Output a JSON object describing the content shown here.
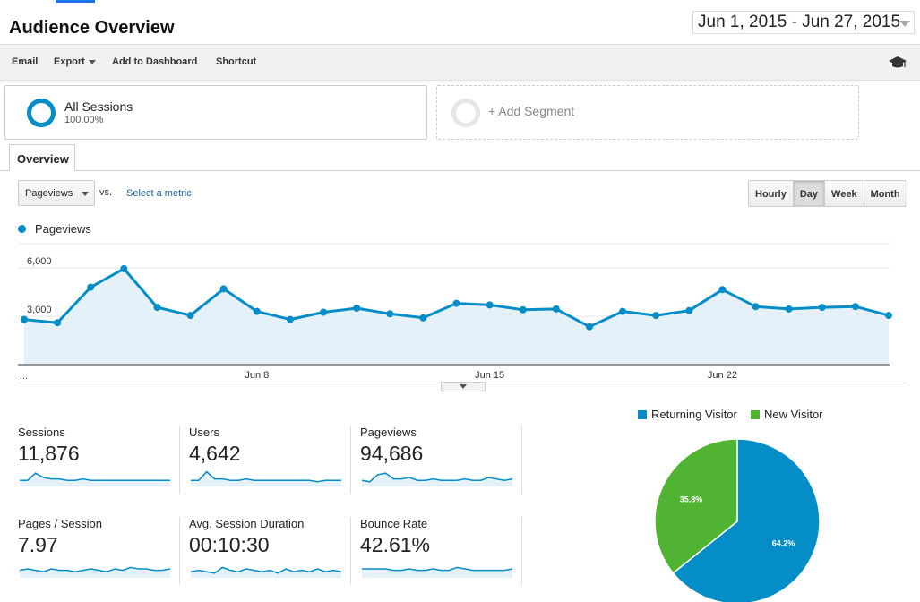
{
  "header": {
    "title": "Audience Overview",
    "date_range": "Jun 1, 2015 - Jun 27, 2015"
  },
  "toolbar": {
    "email": "Email",
    "export": "Export",
    "add_to_dashboard": "Add to Dashboard",
    "shortcut": "Shortcut",
    "education_icon": "graduation-cap-icon"
  },
  "segments": {
    "all_sessions": {
      "name": "All Sessions",
      "pct": "100.00%"
    },
    "add": "+ Add Segment"
  },
  "tabs": {
    "overview": "Overview"
  },
  "controls": {
    "metric": "Pageviews",
    "vs": "vs.",
    "select_metric": "Select a metric",
    "granularity": [
      "Hourly",
      "Day",
      "Week",
      "Month"
    ],
    "active_granularity": "Day"
  },
  "chart_data": {
    "type": "line",
    "series": [
      {
        "name": "Pageviews",
        "color": "#058dc7",
        "values": [
          2800,
          2600,
          4800,
          5950,
          3550,
          3050,
          4700,
          3300,
          2800,
          3250,
          3500,
          3150,
          2900,
          3800,
          3700,
          3400,
          3450,
          2350,
          3300,
          3050,
          3350,
          4650,
          3600,
          3450,
          3550,
          3600,
          3050
        ]
      }
    ],
    "x_start_label": "...",
    "x_ticks": [
      {
        "label": "Jun 8",
        "index": 7
      },
      {
        "label": "Jun 15",
        "index": 14
      },
      {
        "label": "Jun 22",
        "index": 21
      }
    ],
    "y_ticks": [
      {
        "label": "6,000",
        "value": 6000
      },
      {
        "label": "3,000",
        "value": 3000
      }
    ],
    "ylim": [
      0,
      7500
    ],
    "grid": true,
    "fill": true
  },
  "stats": [
    {
      "label": "Sessions",
      "value": "11,876",
      "spark": [
        3,
        3,
        8,
        5,
        4,
        4,
        3,
        3,
        4,
        3,
        3,
        3,
        3,
        3,
        3,
        3,
        3,
        3,
        3,
        3
      ]
    },
    {
      "label": "Users",
      "value": "4,642",
      "spark": [
        3,
        3,
        9,
        4,
        4,
        3,
        3,
        4,
        3,
        3,
        3,
        3,
        3,
        3,
        3,
        3,
        2,
        3,
        3,
        3
      ]
    },
    {
      "label": "Pageviews",
      "value": "94,686",
      "spark": [
        3,
        2,
        7,
        8,
        4,
        4,
        5,
        3,
        3,
        4,
        3,
        3,
        3,
        4,
        3,
        3,
        5,
        4,
        3,
        4
      ]
    },
    {
      "label": "Pages / Session",
      "value": "7.97",
      "spark": [
        4,
        5,
        4,
        3,
        5,
        4,
        4,
        3,
        4,
        5,
        4,
        3,
        5,
        4,
        6,
        5,
        5,
        4,
        4,
        5
      ]
    },
    {
      "label": "Avg. Session Duration",
      "value": "00:10:30",
      "spark": [
        3,
        4,
        3,
        2,
        6,
        4,
        3,
        5,
        4,
        3,
        4,
        2,
        5,
        3,
        4,
        3,
        5,
        3,
        4,
        3
      ]
    },
    {
      "label": "Bounce Rate",
      "value": "42.61%",
      "spark": [
        5,
        5,
        5,
        5,
        4,
        4,
        5,
        4,
        4,
        5,
        4,
        4,
        6,
        5,
        4,
        4,
        4,
        4,
        4,
        5
      ]
    }
  ],
  "pie": {
    "legend": [
      {
        "label": "Returning Visitor",
        "color": "#058dc7"
      },
      {
        "label": "New Visitor",
        "color": "#50b432"
      }
    ],
    "slices": [
      {
        "name": "Returning Visitor",
        "value": 64.2,
        "label": "64.2%",
        "color": "#058dc7"
      },
      {
        "name": "New Visitor",
        "value": 35.8,
        "label": "35.8%",
        "color": "#50b432"
      }
    ]
  }
}
